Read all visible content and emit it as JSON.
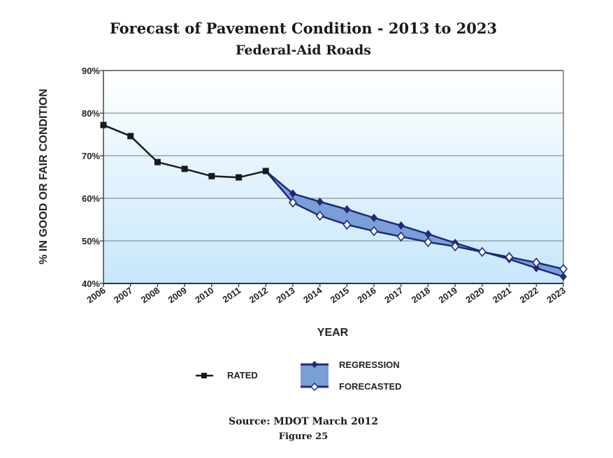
{
  "chart_data": {
    "type": "line",
    "title": "Forecast of Pavement Condition - 2013 to 2023",
    "subtitle": "Federal-Aid Roads",
    "xlabel": "YEAR",
    "ylabel": "% IN GOOD OR FAIR CONDITION",
    "ylim": [
      40,
      90
    ],
    "yticks": [
      40,
      50,
      60,
      70,
      80,
      90
    ],
    "ytick_labels": [
      "40%",
      "50%",
      "60%",
      "70%",
      "80%",
      "90%"
    ],
    "x": [
      2006,
      2007,
      2008,
      2009,
      2010,
      2011,
      2012,
      2013,
      2014,
      2015,
      2016,
      2017,
      2018,
      2019,
      2020,
      2021,
      2022,
      2023
    ],
    "xtick_labels": [
      "2006",
      "2007",
      "2008",
      "2009",
      "2010",
      "2011",
      "2012",
      "2013",
      "2014",
      "2015",
      "2016",
      "2017",
      "2018",
      "2019",
      "2020",
      "2021",
      "2022",
      "2023"
    ],
    "grid": true,
    "background": "gradient white to light blue",
    "series": [
      {
        "name": "RATED",
        "marker": "square",
        "color": "#1a1a1a",
        "x": [
          2006,
          2007,
          2008,
          2009,
          2010,
          2011,
          2012
        ],
        "values": [
          77.2,
          74.6,
          68.5,
          66.9,
          65.2,
          64.9,
          66.4
        ]
      },
      {
        "name": "REGRESSION",
        "marker": "filled-diamond",
        "color": "#1f2a7a",
        "x": [
          2012,
          2013,
          2014,
          2015,
          2016,
          2017,
          2018,
          2019,
          2020,
          2021,
          2022,
          2023
        ],
        "values": [
          66.4,
          61.1,
          59.2,
          57.4,
          55.4,
          53.6,
          51.6,
          49.5,
          47.5,
          45.7,
          43.6,
          41.6
        ]
      },
      {
        "name": "FORECASTED",
        "marker": "hollow-diamond",
        "color": "#1f2a7a",
        "x": [
          2012,
          2013,
          2014,
          2015,
          2016,
          2017,
          2018,
          2019,
          2020,
          2021,
          2022,
          2023
        ],
        "values": [
          66.4,
          59.0,
          55.9,
          53.8,
          52.3,
          51.0,
          49.7,
          48.7,
          47.4,
          46.2,
          44.9,
          43.4
        ]
      }
    ],
    "band_fill": "#7a9ed6",
    "legend": {
      "placement": "bottom-center",
      "entries": [
        "RATED",
        "REGRESSION",
        "FORECASTED"
      ]
    }
  },
  "captions": {
    "source": "Source: MDOT March 2012",
    "figure": "Figure 25"
  }
}
